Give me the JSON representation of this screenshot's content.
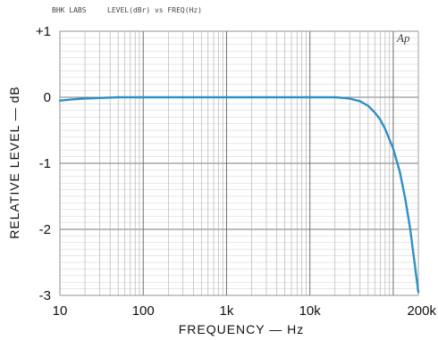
{
  "header": {
    "left": "BHK LABS",
    "right": "LEVEL(dBr) vs FREQ(Hz)"
  },
  "logo_text": "Ap",
  "chart_data": {
    "type": "line",
    "xlabel": "FREQUENCY — Hz",
    "ylabel": "RELATIVE LEVEL — dB",
    "x_scale": "log",
    "xlim": [
      10,
      200000
    ],
    "ylim": [
      -3,
      1
    ],
    "grid": true,
    "x_ticks": [
      {
        "value": 10,
        "label": "10"
      },
      {
        "value": 100,
        "label": "100"
      },
      {
        "value": 1000,
        "label": "1k"
      },
      {
        "value": 10000,
        "label": "10k"
      },
      {
        "value": 200000,
        "label": "200k"
      }
    ],
    "y_ticks": [
      {
        "value": 1,
        "label": "+1"
      },
      {
        "value": 0,
        "label": "0"
      },
      {
        "value": -1,
        "label": "-1"
      },
      {
        "value": -2,
        "label": "-2"
      },
      {
        "value": -3,
        "label": "-3"
      }
    ],
    "series": [
      {
        "color": "#2f8fc6",
        "x": [
          10,
          15,
          20,
          30,
          50,
          100,
          300,
          1000,
          3000,
          10000,
          15000,
          20000,
          25000,
          30000,
          40000,
          50000,
          60000,
          70000,
          80000,
          100000,
          120000,
          140000,
          160000,
          180000,
          200000
        ],
        "y": [
          -0.05,
          -0.03,
          -0.02,
          -0.01,
          0,
          0,
          0,
          0,
          0,
          0,
          0,
          0,
          -0.01,
          -0.02,
          -0.06,
          -0.13,
          -0.23,
          -0.34,
          -0.48,
          -0.78,
          -1.13,
          -1.55,
          -2.0,
          -2.5,
          -2.95
        ]
      }
    ]
  }
}
